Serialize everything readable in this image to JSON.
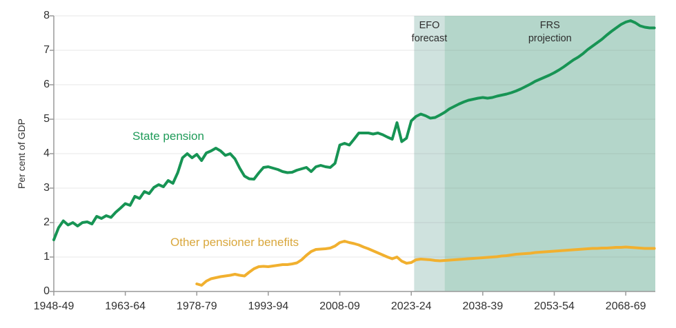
{
  "chart_data": {
    "type": "line",
    "title": "",
    "ylabel": "Per cent of GDP",
    "ylim": [
      0,
      8
    ],
    "y_ticks": [
      0,
      1,
      2,
      3,
      4,
      5,
      6,
      7,
      8
    ],
    "x_range": [
      1948,
      2074.2
    ],
    "x_tick_years": [
      1948,
      1963,
      1978,
      1993,
      2008,
      2023,
      2038,
      2053,
      2068
    ],
    "x_tick_labels": [
      "1948-49",
      "1963-64",
      "1978-79",
      "1993-94",
      "2008-09",
      "2023-24",
      "2038-39",
      "2053-54",
      "2068-69"
    ],
    "grid": "horizontal",
    "grid_color": "#e4e4e4",
    "axis_color": "#999999",
    "legend_position": "inline-labels",
    "regions": [
      {
        "label": "EFO\nforecast",
        "start_year": 2023.6,
        "end_year": 2030,
        "color": "#cfe2de"
      },
      {
        "label": "FRS\nprojection",
        "start_year": 2030,
        "end_year": 2074.2,
        "color": "#b4d6ca"
      }
    ],
    "series": [
      {
        "name": "State pension",
        "color": "#179454",
        "label_color": "#1f9b59",
        "points": [
          [
            1948,
            1.5
          ],
          [
            1949,
            1.85
          ],
          [
            1950,
            2.05
          ],
          [
            1951,
            1.93
          ],
          [
            1952,
            2.0
          ],
          [
            1953,
            1.9
          ],
          [
            1954,
            2.0
          ],
          [
            1955,
            2.02
          ],
          [
            1956,
            1.96
          ],
          [
            1957,
            2.18
          ],
          [
            1958,
            2.12
          ],
          [
            1959,
            2.2
          ],
          [
            1960,
            2.15
          ],
          [
            1961,
            2.3
          ],
          [
            1962,
            2.42
          ],
          [
            1963,
            2.55
          ],
          [
            1964,
            2.5
          ],
          [
            1965,
            2.76
          ],
          [
            1966,
            2.7
          ],
          [
            1967,
            2.9
          ],
          [
            1968,
            2.84
          ],
          [
            1969,
            3.02
          ],
          [
            1970,
            3.1
          ],
          [
            1971,
            3.04
          ],
          [
            1972,
            3.22
          ],
          [
            1973,
            3.14
          ],
          [
            1974,
            3.45
          ],
          [
            1975,
            3.88
          ],
          [
            1976,
            4.0
          ],
          [
            1977,
            3.88
          ],
          [
            1978,
            3.98
          ],
          [
            1979,
            3.8
          ],
          [
            1980,
            4.02
          ],
          [
            1981,
            4.08
          ],
          [
            1982,
            4.16
          ],
          [
            1983,
            4.08
          ],
          [
            1984,
            3.95
          ],
          [
            1985,
            4.0
          ],
          [
            1986,
            3.85
          ],
          [
            1987,
            3.58
          ],
          [
            1988,
            3.35
          ],
          [
            1989,
            3.27
          ],
          [
            1990,
            3.26
          ],
          [
            1991,
            3.44
          ],
          [
            1992,
            3.6
          ],
          [
            1993,
            3.62
          ],
          [
            1994,
            3.58
          ],
          [
            1995,
            3.54
          ],
          [
            1996,
            3.48
          ],
          [
            1997,
            3.45
          ],
          [
            1998,
            3.46
          ],
          [
            1999,
            3.52
          ],
          [
            2000,
            3.56
          ],
          [
            2001,
            3.6
          ],
          [
            2002,
            3.48
          ],
          [
            2003,
            3.62
          ],
          [
            2004,
            3.66
          ],
          [
            2005,
            3.62
          ],
          [
            2006,
            3.6
          ],
          [
            2007,
            3.72
          ],
          [
            2008,
            4.25
          ],
          [
            2009,
            4.3
          ],
          [
            2010,
            4.25
          ],
          [
            2011,
            4.42
          ],
          [
            2012,
            4.6
          ],
          [
            2013,
            4.6
          ],
          [
            2014,
            4.6
          ],
          [
            2015,
            4.57
          ],
          [
            2016,
            4.6
          ],
          [
            2017,
            4.55
          ],
          [
            2018,
            4.48
          ],
          [
            2019,
            4.42
          ],
          [
            2020,
            4.9
          ],
          [
            2021,
            4.35
          ],
          [
            2022,
            4.45
          ],
          [
            2023,
            4.95
          ],
          [
            2024,
            5.08
          ],
          [
            2025,
            5.15
          ],
          [
            2026,
            5.1
          ],
          [
            2027,
            5.03
          ],
          [
            2028,
            5.05
          ],
          [
            2029,
            5.12
          ],
          [
            2030,
            5.2
          ],
          [
            2031,
            5.3
          ],
          [
            2032,
            5.37
          ],
          [
            2033,
            5.44
          ],
          [
            2034,
            5.5
          ],
          [
            2035,
            5.55
          ],
          [
            2036,
            5.58
          ],
          [
            2037,
            5.61
          ],
          [
            2038,
            5.63
          ],
          [
            2039,
            5.61
          ],
          [
            2040,
            5.63
          ],
          [
            2041,
            5.67
          ],
          [
            2042,
            5.7
          ],
          [
            2043,
            5.73
          ],
          [
            2044,
            5.77
          ],
          [
            2045,
            5.82
          ],
          [
            2046,
            5.88
          ],
          [
            2047,
            5.95
          ],
          [
            2048,
            6.02
          ],
          [
            2049,
            6.1
          ],
          [
            2050,
            6.16
          ],
          [
            2051,
            6.22
          ],
          [
            2052,
            6.28
          ],
          [
            2053,
            6.35
          ],
          [
            2054,
            6.43
          ],
          [
            2055,
            6.52
          ],
          [
            2056,
            6.62
          ],
          [
            2057,
            6.72
          ],
          [
            2058,
            6.8
          ],
          [
            2059,
            6.9
          ],
          [
            2060,
            7.02
          ],
          [
            2061,
            7.12
          ],
          [
            2062,
            7.22
          ],
          [
            2063,
            7.32
          ],
          [
            2064,
            7.44
          ],
          [
            2065,
            7.55
          ],
          [
            2066,
            7.65
          ],
          [
            2067,
            7.75
          ],
          [
            2068,
            7.82
          ],
          [
            2069,
            7.86
          ],
          [
            2070,
            7.8
          ],
          [
            2071,
            7.71
          ],
          [
            2072,
            7.67
          ],
          [
            2073,
            7.65
          ],
          [
            2074,
            7.65
          ]
        ]
      },
      {
        "name": "Other pensioner benefits",
        "color": "#f1b02f",
        "label_color": "#d9a73c",
        "points": [
          [
            1978,
            0.22
          ],
          [
            1979,
            0.18
          ],
          [
            1980,
            0.3
          ],
          [
            1981,
            0.37
          ],
          [
            1982,
            0.4
          ],
          [
            1983,
            0.43
          ],
          [
            1984,
            0.45
          ],
          [
            1985,
            0.47
          ],
          [
            1986,
            0.5
          ],
          [
            1987,
            0.47
          ],
          [
            1988,
            0.45
          ],
          [
            1989,
            0.56
          ],
          [
            1990,
            0.66
          ],
          [
            1991,
            0.72
          ],
          [
            1992,
            0.73
          ],
          [
            1993,
            0.72
          ],
          [
            1994,
            0.74
          ],
          [
            1995,
            0.76
          ],
          [
            1996,
            0.78
          ],
          [
            1997,
            0.78
          ],
          [
            1998,
            0.8
          ],
          [
            1999,
            0.83
          ],
          [
            2000,
            0.92
          ],
          [
            2001,
            1.05
          ],
          [
            2002,
            1.16
          ],
          [
            2003,
            1.22
          ],
          [
            2004,
            1.23
          ],
          [
            2005,
            1.24
          ],
          [
            2006,
            1.26
          ],
          [
            2007,
            1.32
          ],
          [
            2008,
            1.42
          ],
          [
            2009,
            1.46
          ],
          [
            2010,
            1.42
          ],
          [
            2011,
            1.39
          ],
          [
            2012,
            1.35
          ],
          [
            2013,
            1.29
          ],
          [
            2014,
            1.24
          ],
          [
            2015,
            1.18
          ],
          [
            2016,
            1.12
          ],
          [
            2017,
            1.06
          ],
          [
            2018,
            1.0
          ],
          [
            2019,
            0.95
          ],
          [
            2020,
            1.0
          ],
          [
            2021,
            0.88
          ],
          [
            2022,
            0.82
          ],
          [
            2023,
            0.84
          ],
          [
            2024,
            0.92
          ],
          [
            2025,
            0.94
          ],
          [
            2026,
            0.93
          ],
          [
            2027,
            0.92
          ],
          [
            2028,
            0.9
          ],
          [
            2029,
            0.89
          ],
          [
            2030,
            0.9
          ],
          [
            2031,
            0.91
          ],
          [
            2032,
            0.92
          ],
          [
            2033,
            0.93
          ],
          [
            2034,
            0.94
          ],
          [
            2035,
            0.95
          ],
          [
            2036,
            0.96
          ],
          [
            2037,
            0.97
          ],
          [
            2038,
            0.98
          ],
          [
            2039,
            0.99
          ],
          [
            2040,
            1.0
          ],
          [
            2041,
            1.01
          ],
          [
            2042,
            1.03
          ],
          [
            2043,
            1.04
          ],
          [
            2044,
            1.06
          ],
          [
            2045,
            1.08
          ],
          [
            2046,
            1.09
          ],
          [
            2047,
            1.1
          ],
          [
            2048,
            1.11
          ],
          [
            2049,
            1.13
          ],
          [
            2050,
            1.14
          ],
          [
            2051,
            1.15
          ],
          [
            2052,
            1.16
          ],
          [
            2053,
            1.17
          ],
          [
            2054,
            1.18
          ],
          [
            2055,
            1.19
          ],
          [
            2056,
            1.2
          ],
          [
            2057,
            1.21
          ],
          [
            2058,
            1.22
          ],
          [
            2059,
            1.23
          ],
          [
            2060,
            1.24
          ],
          [
            2061,
            1.25
          ],
          [
            2062,
            1.25
          ],
          [
            2063,
            1.26
          ],
          [
            2064,
            1.26
          ],
          [
            2065,
            1.27
          ],
          [
            2066,
            1.28
          ],
          [
            2067,
            1.28
          ],
          [
            2068,
            1.29
          ],
          [
            2069,
            1.28
          ],
          [
            2070,
            1.27
          ],
          [
            2071,
            1.26
          ],
          [
            2072,
            1.25
          ],
          [
            2073,
            1.25
          ],
          [
            2074,
            1.25
          ]
        ]
      }
    ]
  }
}
